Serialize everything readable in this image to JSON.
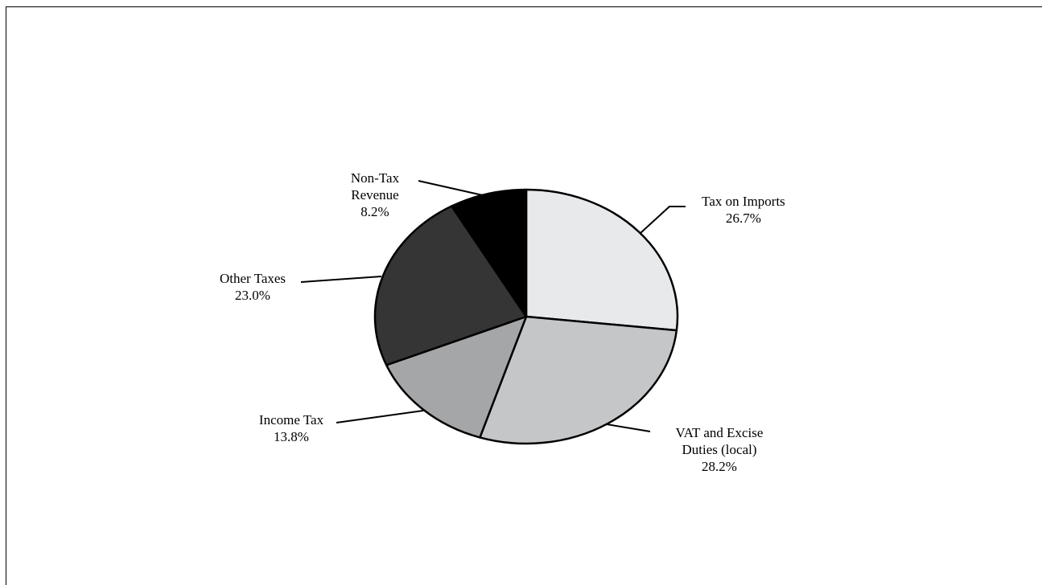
{
  "chart_data": {
    "type": "pie",
    "slices": [
      {
        "name_lines": [
          "Tax on Imports"
        ],
        "value_label": "26.7%",
        "value": 26.7,
        "color": "#e8e9eb"
      },
      {
        "name_lines": [
          "VAT and Excise",
          "Duties (local)"
        ],
        "value_label": "28.2%",
        "value": 28.2,
        "color": "#c5c6c8"
      },
      {
        "name_lines": [
          "Income Tax"
        ],
        "value_label": "13.8%",
        "value": 13.8,
        "color": "#a5a6a8"
      },
      {
        "name_lines": [
          "Other Taxes"
        ],
        "value_label": "23.0%",
        "value": 23.0,
        "color": "#353535"
      },
      {
        "name_lines": [
          "Non-Tax",
          "Revenue"
        ],
        "value_label": "8.2%",
        "value": 8.2,
        "color": "#000000"
      }
    ]
  }
}
